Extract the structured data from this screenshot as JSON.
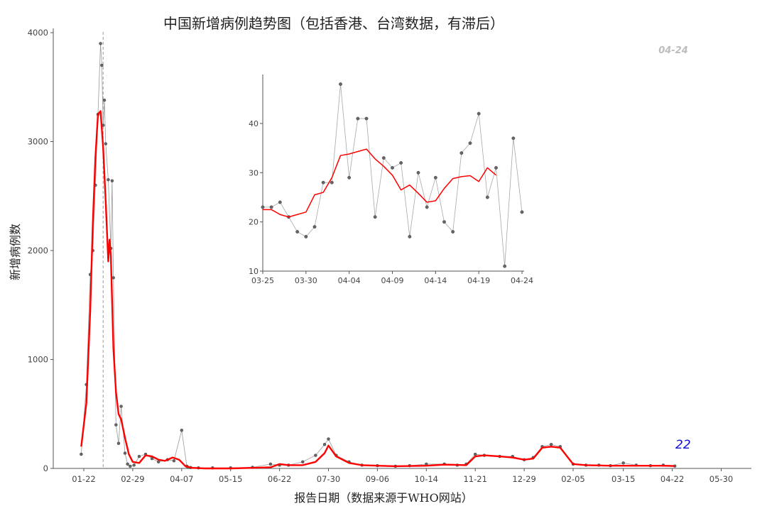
{
  "title": "中国新增病例趋势图（包括香港、台湾数据，有滞后）",
  "xlabel": "报告日期（数据来源于WHO网站）",
  "ylabel": "新增病例数",
  "last_date_label": "04-24",
  "last_value_label": "22",
  "chart_data": [
    {
      "type": "line",
      "ylim": [
        0,
        4000
      ],
      "yticks": [
        0,
        1000,
        2000,
        3000,
        4000
      ],
      "xticks": [
        "01-22",
        "02-29",
        "04-07",
        "05-15",
        "06-22",
        "07-30",
        "09-06",
        "10-14",
        "11-21",
        "12-29",
        "02-05",
        "03-15",
        "04-22",
        "05-30"
      ],
      "vline_peak": "02-06",
      "vline_latest": "04-24",
      "grid": false,
      "series": [
        {
          "x": [
            "01-20",
            "01-24",
            "01-27",
            "01-29",
            "01-31",
            "02-02",
            "02-04",
            "02-05",
            "02-06",
            "02-07",
            "02-08",
            "02-10",
            "02-12",
            "02-13",
            "02-14",
            "02-16",
            "02-18",
            "02-20",
            "02-23",
            "02-25",
            "02-27",
            "03-01",
            "03-05",
            "03-10",
            "03-15",
            "03-20",
            "03-27",
            "04-01",
            "04-07",
            "04-11",
            "04-12",
            "04-14",
            "04-20",
            "05-01",
            "05-15",
            "06-01",
            "06-15",
            "06-22",
            "06-29",
            "07-10",
            "07-20",
            "07-27",
            "07-30",
            "08-05",
            "08-15",
            "08-25",
            "09-06",
            "09-20",
            "10-01",
            "10-14",
            "10-28",
            "11-07",
            "11-14",
            "11-21",
            "11-28",
            "12-10",
            "12-20",
            "12-29",
            "01-05",
            "01-12",
            "01-19",
            "01-26",
            "02-05",
            "02-15",
            "02-25",
            "03-05",
            "03-15",
            "03-25",
            "04-05",
            "04-15",
            "04-24"
          ],
          "values": [
            130,
            770,
            1780,
            2000,
            2600,
            3250,
            3900,
            3700,
            3150,
            3380,
            2980,
            2650,
            2020,
            2640,
            1750,
            400,
            230,
            570,
            140,
            40,
            20,
            30,
            110,
            130,
            90,
            60,
            80,
            70,
            350,
            20,
            10,
            8,
            5,
            5,
            5,
            10,
            40,
            30,
            30,
            60,
            120,
            220,
            270,
            120,
            60,
            30,
            25,
            20,
            25,
            40,
            40,
            30,
            40,
            130,
            120,
            110,
            110,
            80,
            100,
            200,
            220,
            200,
            40,
            30,
            30,
            25,
            50,
            30,
            25,
            30,
            22
          ]
        },
        {
          "x": [
            "01-20",
            "01-24",
            "01-27",
            "01-29",
            "01-31",
            "02-02",
            "02-04",
            "02-06",
            "02-08",
            "02-10",
            "02-11",
            "02-12",
            "02-14",
            "02-16",
            "02-18",
            "02-20",
            "02-23",
            "02-26",
            "02-29",
            "03-05",
            "03-10",
            "03-15",
            "03-20",
            "03-25",
            "03-31",
            "04-05",
            "04-10",
            "04-15",
            "04-25",
            "05-15",
            "06-01",
            "06-15",
            "06-22",
            "06-29",
            "07-10",
            "07-20",
            "07-27",
            "07-30",
            "08-05",
            "08-15",
            "08-25",
            "09-06",
            "09-20",
            "10-14",
            "10-28",
            "11-14",
            "11-21",
            "11-28",
            "12-10",
            "12-20",
            "12-29",
            "01-05",
            "01-12",
            "01-19",
            "01-26",
            "02-05",
            "02-15",
            "03-05",
            "03-25",
            "04-15",
            "04-24"
          ],
          "values": [
            200,
            600,
            1450,
            2250,
            2850,
            3250,
            3280,
            2950,
            2450,
            1900,
            2100,
            1950,
            1100,
            700,
            500,
            450,
            280,
            130,
            60,
            50,
            120,
            110,
            80,
            70,
            100,
            80,
            20,
            5,
            0,
            0,
            5,
            10,
            40,
            30,
            30,
            60,
            140,
            210,
            110,
            50,
            30,
            25,
            20,
            25,
            35,
            30,
            110,
            120,
            110,
            100,
            80,
            90,
            190,
            200,
            190,
            40,
            30,
            25,
            25,
            25,
            22
          ],
          "color": "#ff0000"
        }
      ]
    },
    {
      "type": "line",
      "ylim": [
        9,
        49
      ],
      "yticks": [
        10,
        20,
        30,
        40
      ],
      "xticks": [
        "03-25",
        "03-30",
        "04-04",
        "04-09",
        "04-14",
        "04-19",
        "04-24"
      ],
      "series": [
        {
          "x": [
            "03-25",
            "03-26",
            "03-27",
            "03-28",
            "03-29",
            "03-30",
            "03-31",
            "04-01",
            "04-02",
            "04-03",
            "04-04",
            "04-05",
            "04-06",
            "04-07",
            "04-08",
            "04-09",
            "04-10",
            "04-11",
            "04-12",
            "04-13",
            "04-14",
            "04-15",
            "04-16",
            "04-17",
            "04-18",
            "04-19",
            "04-20",
            "04-21",
            "04-22",
            "04-23",
            "04-24"
          ],
          "values": [
            23,
            23,
            24,
            21,
            18,
            17,
            19,
            28,
            28,
            48,
            29,
            41,
            41,
            21,
            33,
            31,
            32,
            17,
            30,
            23,
            29,
            20,
            18,
            34,
            36,
            42,
            25,
            31,
            11,
            37,
            22
          ]
        },
        {
          "x": [
            "03-25",
            "03-26",
            "03-27",
            "03-28",
            "03-29",
            "03-30",
            "03-31",
            "04-01",
            "04-02",
            "04-03",
            "04-04",
            "04-05",
            "04-06",
            "04-07",
            "04-08",
            "04-09",
            "04-10",
            "04-11",
            "04-12",
            "04-13",
            "04-14",
            "04-15",
            "04-16",
            "04-17",
            "04-18",
            "04-19",
            "04-20",
            "04-21"
          ],
          "values": [
            22.5,
            22.5,
            21.5,
            21,
            21.5,
            22,
            25.5,
            26,
            29,
            33.5,
            33.8,
            34.3,
            34.8,
            32.8,
            31.3,
            29.5,
            26.5,
            27.5,
            25.8,
            24,
            24.3,
            26.8,
            28.8,
            29.2,
            29.4,
            28.2,
            31,
            29.5
          ],
          "color": "#ff0000"
        }
      ]
    }
  ]
}
